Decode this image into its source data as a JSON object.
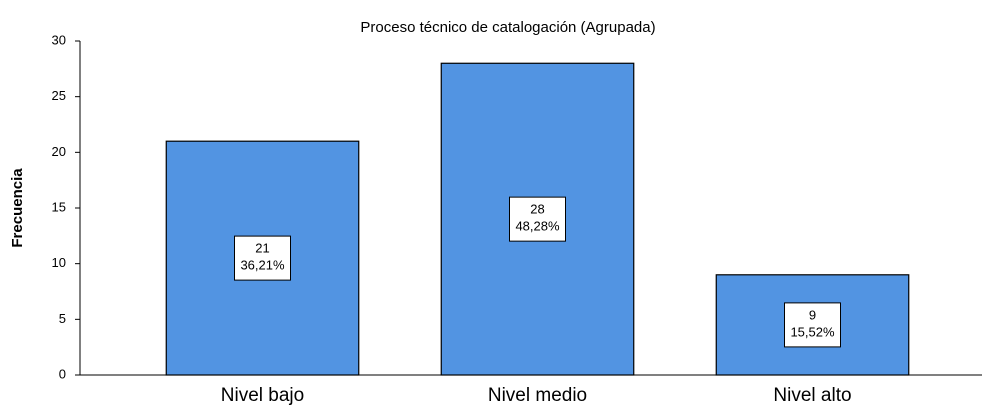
{
  "chart_data": {
    "type": "bar",
    "title": "Proceso técnico de catalogación (Agrupada)",
    "ylabel": "Frecuencia",
    "categories": [
      "Nivel bajo",
      "Nivel medio",
      "Nivel alto"
    ],
    "values": [
      21,
      28,
      9
    ],
    "percentage_labels": [
      "36,21%",
      "48,28%",
      "15,52%"
    ],
    "color": "#5294e2",
    "ylim": [
      0,
      30
    ],
    "yticks": [
      0,
      5,
      10,
      15,
      20,
      25,
      30
    ]
  }
}
